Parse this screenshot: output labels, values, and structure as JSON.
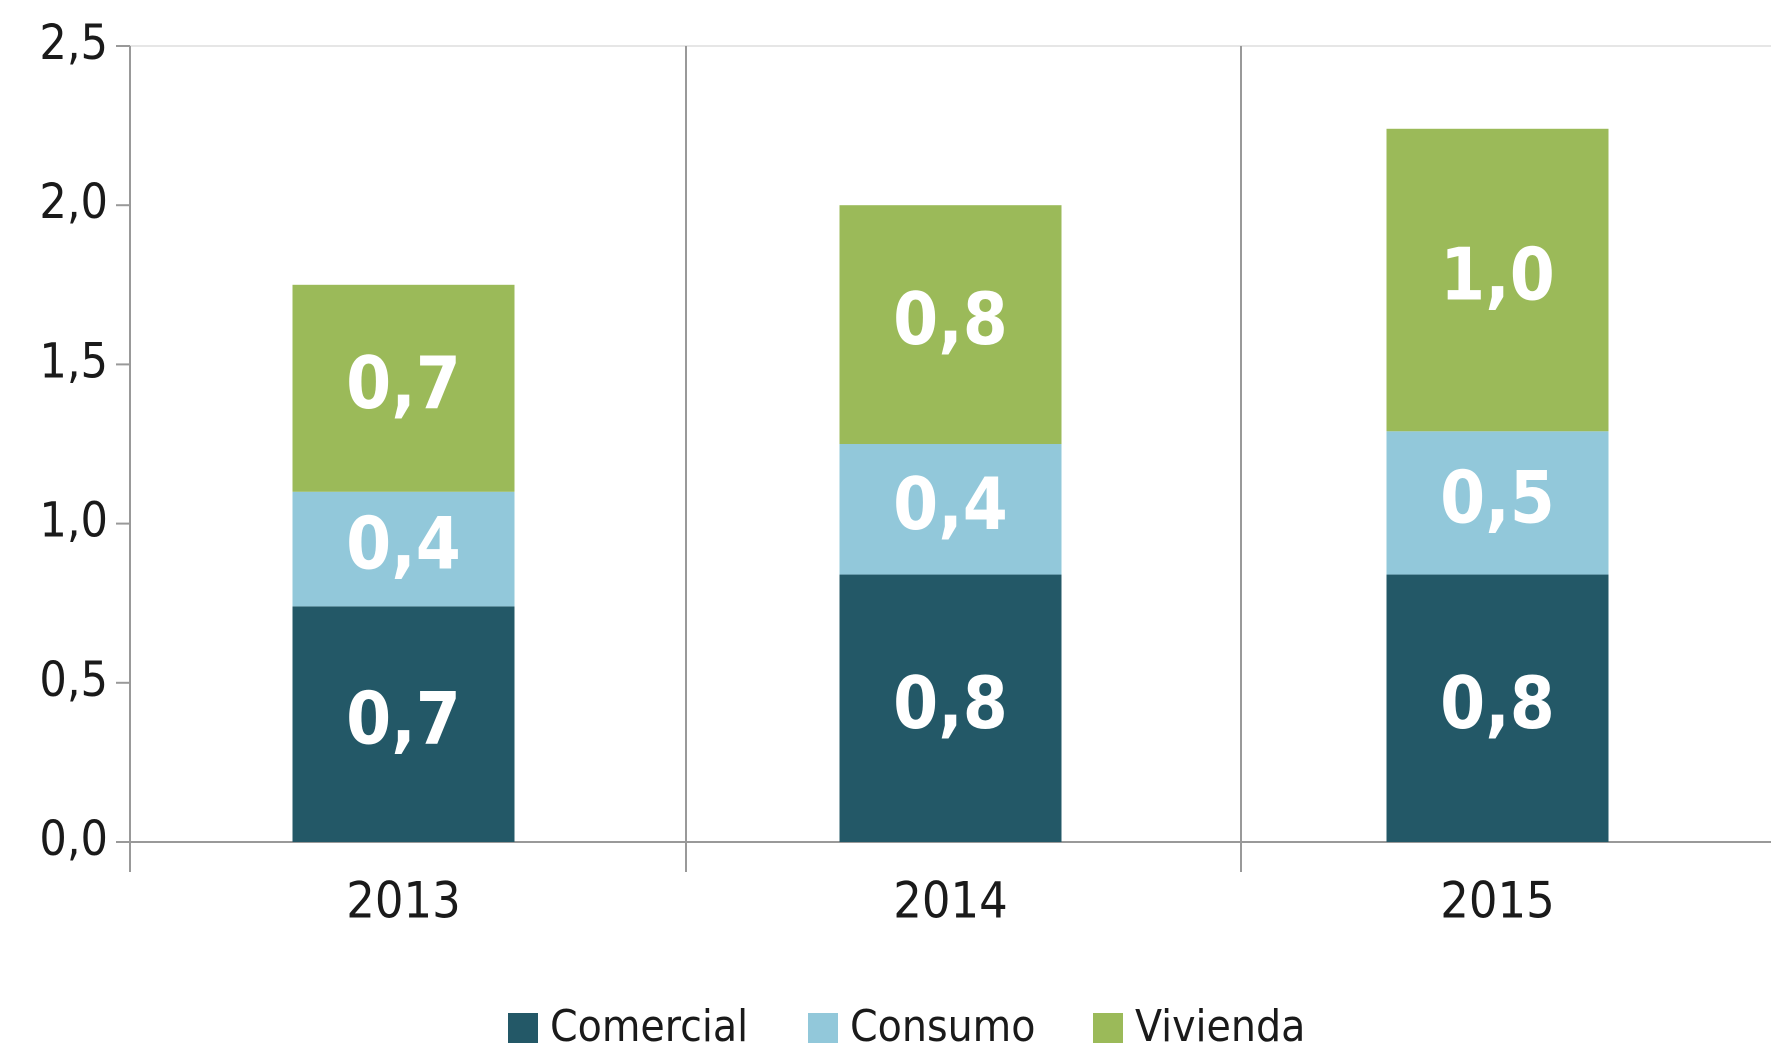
{
  "chart_data": {
    "type": "stacked_bar",
    "categories": [
      "2013",
      "2014",
      "2015"
    ],
    "series": [
      {
        "name": "Comercial",
        "color": "#235867",
        "values": [
          0.74,
          0.84,
          0.84
        ],
        "value_labels": [
          "0,7",
          "0,8",
          "0,8"
        ]
      },
      {
        "name": "Consumo",
        "color": "#92c8da",
        "values": [
          0.36,
          0.41,
          0.45
        ],
        "value_labels": [
          "0,4",
          "0,4",
          "0,5"
        ]
      },
      {
        "name": "Vivienda",
        "color": "#9bba59",
        "values": [
          0.65,
          0.75,
          0.95
        ],
        "value_labels": [
          "0,7",
          "0,8",
          "1,0"
        ]
      }
    ],
    "ylim": [
      0,
      2.5
    ],
    "yticks": [
      {
        "value": 0,
        "label": "0,0"
      },
      {
        "value": 0.5,
        "label": "0,5"
      },
      {
        "value": 1,
        "label": "1,0"
      },
      {
        "value": 1.5,
        "label": "1,5"
      },
      {
        "value": 2,
        "label": "2,0"
      },
      {
        "value": 2.5,
        "label": "2,5"
      }
    ],
    "legend": "bottom"
  }
}
